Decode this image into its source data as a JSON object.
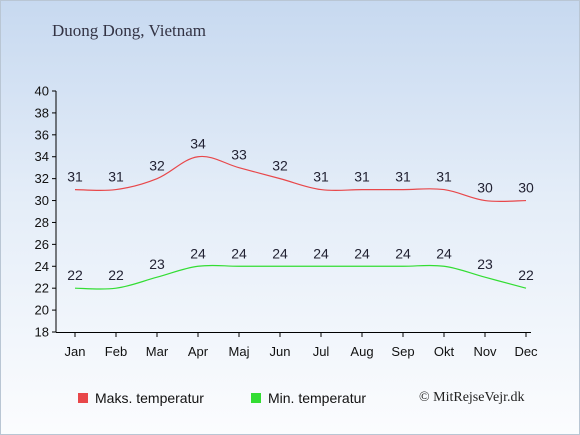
{
  "title": "Duong Dong, Vietnam",
  "credit": "© MitRejseVejr.dk",
  "chart_data": {
    "type": "line",
    "categories": [
      "Jan",
      "Feb",
      "Mar",
      "Apr",
      "Maj",
      "Jun",
      "Jul",
      "Aug",
      "Sep",
      "Okt",
      "Nov",
      "Dec"
    ],
    "series": [
      {
        "name": "Maks. temperatur",
        "color": "#e8474a",
        "values": [
          31,
          31,
          32,
          34,
          33,
          32,
          31,
          31,
          31,
          31,
          30,
          30
        ]
      },
      {
        "name": "Min. temperatur",
        "color": "#33dd33",
        "values": [
          22,
          22,
          23,
          24,
          24,
          24,
          24,
          24,
          24,
          24,
          23,
          22
        ]
      }
    ],
    "ylim": [
      18,
      40
    ],
    "yticks": [
      18,
      20,
      22,
      24,
      26,
      28,
      30,
      32,
      34,
      36,
      38,
      40
    ],
    "legend": "bottom-left",
    "grid": false
  }
}
